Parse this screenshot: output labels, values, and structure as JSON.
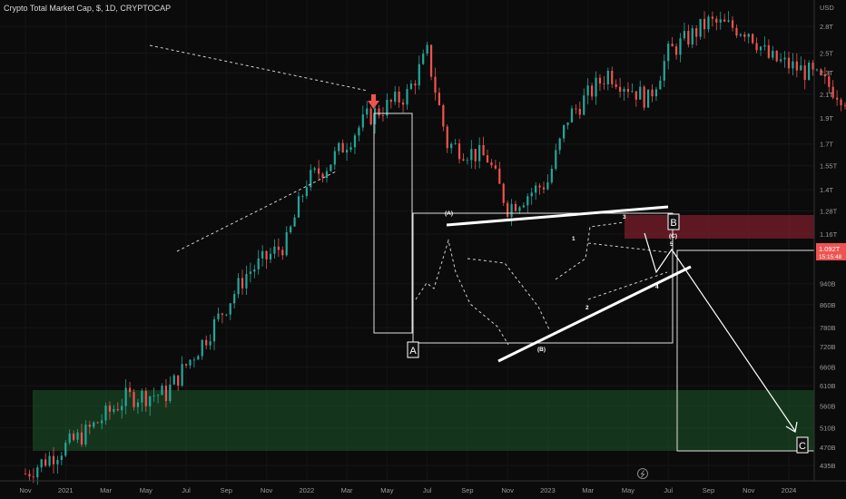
{
  "chart_data": {
    "type": "candlestick",
    "title": "Crypto Total Market Cap, $, 1D, CRYPTOCAP",
    "y_unit": "USD",
    "y_ticks": [
      {
        "label": "2.8T",
        "v": 2.8
      },
      {
        "label": "2.5T",
        "v": 2.5
      },
      {
        "label": "2.3T",
        "v": 2.3
      },
      {
        "label": "2.1T",
        "v": 2.1
      },
      {
        "label": "1.9T",
        "v": 1.9
      },
      {
        "label": "1.7T",
        "v": 1.7
      },
      {
        "label": "1.55T",
        "v": 1.55
      },
      {
        "label": "1.4T",
        "v": 1.4
      },
      {
        "label": "1.28T",
        "v": 1.28
      },
      {
        "label": "1.16T",
        "v": 1.16
      },
      {
        "label": "940B",
        "v": 0.94
      },
      {
        "label": "860B",
        "v": 0.86
      },
      {
        "label": "780B",
        "v": 0.78
      },
      {
        "label": "720B",
        "v": 0.72
      },
      {
        "label": "660B",
        "v": 0.66
      },
      {
        "label": "610B",
        "v": 0.61
      },
      {
        "label": "560B",
        "v": 0.56
      },
      {
        "label": "510B",
        "v": 0.51
      },
      {
        "label": "470B",
        "v": 0.47
      },
      {
        "label": "435B",
        "v": 0.435
      }
    ],
    "x_ticks": [
      "Nov",
      "2021",
      "Mar",
      "May",
      "Jul",
      "Sep",
      "Nov",
      "2022",
      "Mar",
      "May",
      "Jul",
      "Sep",
      "Nov",
      "2023",
      "Mar",
      "May",
      "Jul",
      "Sep",
      "Nov",
      "2024"
    ],
    "price_path": [
      [
        0,
        0.42
      ],
      [
        3,
        0.5
      ],
      [
        5,
        0.58
      ],
      [
        7,
        0.59
      ],
      [
        9,
        0.75
      ],
      [
        11,
        0.98
      ],
      [
        13,
        1.12
      ],
      [
        14,
        1.45
      ],
      [
        15,
        1.55
      ],
      [
        17,
        1.9
      ],
      [
        19,
        2.1
      ],
      [
        20,
        2.5
      ],
      [
        21,
        1.7
      ],
      [
        23,
        1.6
      ],
      [
        24,
        1.3
      ],
      [
        26,
        1.45
      ],
      [
        27,
        1.9
      ],
      [
        29,
        2.3
      ],
      [
        31,
        2.05
      ],
      [
        32,
        2.5
      ],
      [
        34,
        2.85
      ],
      [
        36,
        2.75
      ],
      [
        37,
        2.45
      ],
      [
        39,
        2.3
      ],
      [
        41,
        2.05
      ],
      [
        42,
        1.65
      ],
      [
        43,
        1.55
      ],
      [
        44,
        1.72
      ],
      [
        46,
        2.1
      ],
      [
        47,
        2.02
      ],
      [
        48,
        1.92
      ],
      [
        49,
        1.75
      ],
      [
        50,
        1.32
      ],
      [
        52,
        1.2
      ],
      [
        53,
        0.95
      ],
      [
        54,
        0.85
      ],
      [
        55,
        1.02
      ],
      [
        57,
        1.14
      ],
      [
        58,
        1.0
      ],
      [
        59,
        0.92
      ],
      [
        61,
        0.93
      ],
      [
        62,
        0.84
      ],
      [
        63,
        0.8
      ],
      [
        64,
        0.8
      ],
      [
        65,
        0.82
      ],
      [
        67,
        0.98
      ],
      [
        69,
        1.02
      ],
      [
        70,
        0.9
      ],
      [
        71,
        1.1
      ],
      [
        72,
        1.15
      ],
      [
        73,
        1.2
      ],
      [
        75,
        1.13
      ],
      [
        76,
        1.09
      ],
      [
        77,
        1.07
      ]
    ],
    "price_current": "1.092T",
    "time_remaining": "15:15:48",
    "annotations": [
      "(A)",
      "(B)",
      "(C)",
      "1",
      "2",
      "3",
      "4",
      "5"
    ],
    "boxes": [
      "A",
      "B",
      "C"
    ]
  },
  "colors": {
    "up": "#26a69a",
    "down": "#ef5350",
    "price_tag": "#ef5350",
    "support_zone": "#1e5a2a",
    "resistance_zone": "#8a2030"
  }
}
